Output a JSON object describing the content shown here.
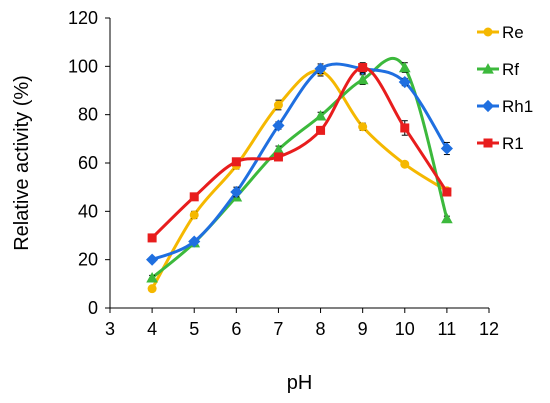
{
  "chart_data": {
    "type": "line",
    "xlabel": "pH",
    "ylabel": "Relative  activity (%)",
    "xlim": [
      3,
      12
    ],
    "ylim": [
      0,
      120
    ],
    "xticks": [
      3,
      4,
      5,
      6,
      7,
      8,
      9,
      10,
      11,
      12
    ],
    "yticks": [
      0,
      20,
      40,
      60,
      80,
      100,
      120
    ],
    "grid": false,
    "smooth": true,
    "error_bars": true,
    "legend_position": "right",
    "series": [
      {
        "name": "Re",
        "color": "#f5b800",
        "marker": "circle",
        "x": [
          4,
          5,
          6,
          7,
          8,
          9,
          10,
          11
        ],
        "y": [
          8,
          38.5,
          59,
          84,
          98,
          75,
          59.5,
          48.5
        ],
        "err": [
          1,
          1.5,
          1.5,
          2,
          2,
          1.5,
          1,
          1
        ]
      },
      {
        "name": "Rf",
        "color": "#3cb93c",
        "marker": "triangle",
        "x": [
          4,
          5,
          6,
          7,
          8,
          9,
          10,
          11
        ],
        "y": [
          12.5,
          27,
          46,
          65.5,
          79.5,
          94.5,
          99.5,
          37
        ],
        "err": [
          1,
          1,
          1.5,
          1.5,
          1.5,
          2,
          2,
          1
        ]
      },
      {
        "name": "Rh1",
        "color": "#1f6fe0",
        "marker": "diamond",
        "x": [
          4,
          5,
          6,
          7,
          8,
          9,
          10,
          11
        ],
        "y": [
          20,
          27.5,
          48,
          75.5,
          99,
          99,
          93.5,
          66
        ],
        "err": [
          1,
          1,
          2,
          1.5,
          2,
          2,
          1.5,
          2.5
        ]
      },
      {
        "name": "R1",
        "color": "#e81d1d",
        "marker": "square",
        "x": [
          4,
          5,
          6,
          7,
          8,
          9,
          10,
          11
        ],
        "y": [
          29,
          46,
          60.5,
          62.5,
          73.5,
          99.5,
          74.5,
          48
        ],
        "err": [
          1,
          1,
          1.5,
          1.5,
          1.5,
          2,
          3,
          1
        ]
      }
    ]
  }
}
